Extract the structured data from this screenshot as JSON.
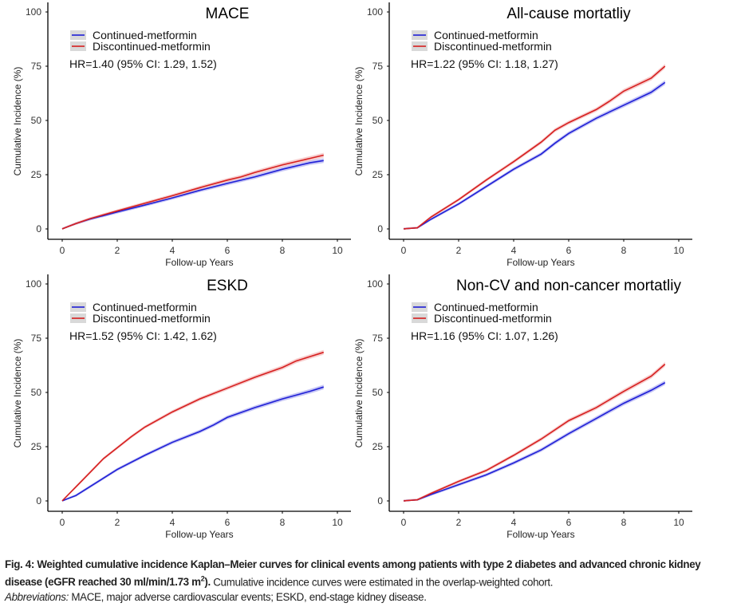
{
  "chart_data": [
    {
      "type": "line",
      "title": "MACE",
      "xlabel": "Follow-up Years",
      "ylabel": "Cumulative Incidence (%)",
      "xlim": [
        0,
        10
      ],
      "ylim": [
        0,
        100
      ],
      "xticks": [
        0,
        2,
        4,
        6,
        8,
        10
      ],
      "yticks": [
        0,
        25,
        50,
        75,
        100
      ],
      "annotation": "HR=1.40 (95% CI: 1.29, 1.52)",
      "legend_position": "top-left",
      "series": [
        {
          "name": "Continued-metformin",
          "color": "#1f1fd6",
          "x": [
            0,
            0.5,
            1,
            2,
            3,
            4,
            5,
            6,
            7,
            8,
            9,
            9.5
          ],
          "y": [
            0,
            2.5,
            4.5,
            7.8,
            11,
            14.3,
            17.8,
            21,
            24,
            27.5,
            30.5,
            31.5
          ]
        },
        {
          "name": "Discontinued-metformin",
          "color": "#d61f1f",
          "x": [
            0,
            0.5,
            1,
            2,
            3,
            4,
            5,
            6,
            6.5,
            7,
            8,
            9,
            9.5
          ],
          "y": [
            0,
            2.5,
            4.7,
            8.3,
            11.8,
            15.3,
            19,
            22.5,
            24,
            26,
            29.5,
            32.5,
            34
          ]
        }
      ]
    },
    {
      "type": "line",
      "title": "All-cause mortatliy",
      "xlabel": "Follow-up Years",
      "ylabel": "Cumulative Incidence (%)",
      "xlim": [
        0,
        10
      ],
      "ylim": [
        0,
        100
      ],
      "xticks": [
        0,
        2,
        4,
        6,
        8,
        10
      ],
      "yticks": [
        0,
        25,
        50,
        75,
        100
      ],
      "annotation": "HR=1.22 (95% CI: 1.18, 1.27)",
      "legend_position": "top-left",
      "series": [
        {
          "name": "Continued-metformin",
          "color": "#1f1fd6",
          "x": [
            0,
            0.5,
            1,
            2,
            3,
            4,
            5,
            5.5,
            6,
            7,
            8,
            9,
            9.5
          ],
          "y": [
            0,
            0.5,
            4.5,
            11.5,
            19.5,
            27.5,
            34.5,
            39.5,
            44,
            51,
            57,
            63,
            67.5
          ]
        },
        {
          "name": "Discontinued-metformin",
          "color": "#d61f1f",
          "x": [
            0,
            0.5,
            1,
            2,
            3,
            4,
            5,
            5.5,
            6,
            7,
            7.5,
            8,
            9,
            9.5
          ],
          "y": [
            0,
            0.5,
            5.5,
            13.5,
            22.5,
            31,
            40,
            45.5,
            49,
            55,
            59,
            63.5,
            69.5,
            75
          ]
        }
      ]
    },
    {
      "type": "line",
      "title": "ESKD",
      "xlabel": "Follow-up Years",
      "ylabel": "Cumulative Incidence (%)",
      "xlim": [
        0,
        10
      ],
      "ylim": [
        0,
        100
      ],
      "xticks": [
        0,
        2,
        4,
        6,
        8,
        10
      ],
      "yticks": [
        0,
        25,
        50,
        75,
        100
      ],
      "annotation": "HR=1.52 (95% CI: 1.42, 1.62)",
      "legend_position": "top-left",
      "series": [
        {
          "name": "Continued-metformin",
          "color": "#1f1fd6",
          "x": [
            0,
            0.5,
            1,
            1.5,
            2,
            3,
            4,
            5,
            5.5,
            6,
            7,
            8,
            9,
            9.5
          ],
          "y": [
            0,
            2.5,
            6.5,
            10.5,
            14.5,
            21,
            27,
            32,
            35,
            38.5,
            43,
            47,
            50.5,
            52.5
          ]
        },
        {
          "name": "Discontinued-metformin",
          "color": "#d61f1f",
          "x": [
            0,
            0.5,
            1,
            1.5,
            2,
            2.5,
            3,
            4,
            5,
            6,
            7,
            8,
            8.5,
            9,
            9.5
          ],
          "y": [
            0,
            6.5,
            13,
            19.5,
            24.5,
            29.5,
            34,
            41,
            47,
            52,
            57,
            61.5,
            64.5,
            66.5,
            68.5
          ]
        }
      ]
    },
    {
      "type": "line",
      "title": "Non-CV and non-cancer mortatliy",
      "xlabel": "Follow-up Years",
      "ylabel": "Cumulative Incidence (%)",
      "xlim": [
        0,
        10
      ],
      "ylim": [
        0,
        100
      ],
      "xticks": [
        0,
        2,
        4,
        6,
        8,
        10
      ],
      "yticks": [
        0,
        25,
        50,
        75,
        100
      ],
      "annotation": "HR=1.16 (95% CI: 1.07, 1.26)",
      "legend_position": "top-left",
      "series": [
        {
          "name": "Continued-metformin",
          "color": "#1f1fd6",
          "x": [
            0,
            0.5,
            1,
            2,
            3,
            4,
            5,
            6,
            7,
            8,
            9,
            9.5
          ],
          "y": [
            0,
            0.5,
            3,
            7.5,
            12,
            17.5,
            23.5,
            31,
            38,
            45,
            51,
            54.5
          ]
        },
        {
          "name": "Discontinued-metformin",
          "color": "#d61f1f",
          "x": [
            0,
            0.5,
            1,
            2,
            3,
            4,
            5,
            6,
            7,
            8,
            9,
            9.5
          ],
          "y": [
            0,
            0.5,
            3.5,
            9,
            14,
            21,
            28.5,
            37,
            43,
            50.5,
            57.5,
            63
          ]
        }
      ]
    }
  ],
  "caption": {
    "label": "Fig. 4:",
    "title": "Weighted cumulative incidence Kaplan–Meier curves for clinical events among patients with type 2 diabetes and advanced chronic kidney disease (eGFR reached 30 ml/min/1.73 m",
    "title_sup": "2",
    "title_end": ").",
    "body": "Cumulative incidence curves were estimated in the overlap-weighted cohort.",
    "abbrev_label": "Abbreviations:",
    "abbrev": "MACE, major adverse cardiovascular events; ESKD, end-stage kidney disease."
  }
}
